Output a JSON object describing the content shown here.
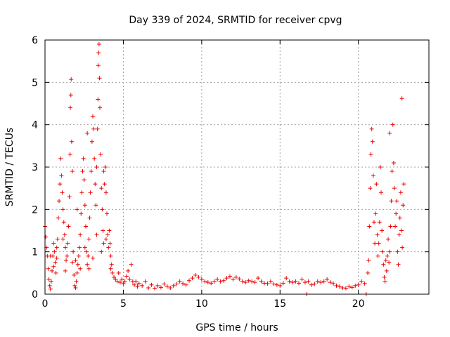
{
  "chart_data": {
    "type": "scatter",
    "title": "Day 339 of 2024, SRMTID for receiver cpvg",
    "xlabel": "GPS time / hours",
    "ylabel": "SRMTID / TECUs",
    "xlim": [
      0,
      24.5
    ],
    "ylim": [
      0,
      6
    ],
    "xticks": [
      0,
      5,
      10,
      15,
      20
    ],
    "yticks": [
      0,
      1,
      2,
      3,
      4,
      5,
      6
    ],
    "xtick_labels": [
      "0",
      "5",
      "10",
      "15",
      "20"
    ],
    "ytick_labels": [
      "0",
      "1",
      "2",
      "3",
      "4",
      "5",
      "6"
    ],
    "grid": true,
    "marker": "+",
    "series": [
      {
        "name": "SRMTID",
        "color": "#ee0000",
        "points": [
          [
            0.0,
            1.6
          ],
          [
            0.05,
            1.35
          ],
          [
            0.1,
            1.1
          ],
          [
            0.15,
            0.9
          ],
          [
            0.2,
            0.6
          ],
          [
            0.25,
            0.35
          ],
          [
            0.3,
            0.2
          ],
          [
            0.35,
            0.12
          ],
          [
            0.4,
            0.3
          ],
          [
            0.45,
            0.55
          ],
          [
            0.5,
            0.9
          ],
          [
            0.55,
            1.2
          ],
          [
            0.6,
            1.0
          ],
          [
            0.65,
            0.75
          ],
          [
            0.7,
            0.5
          ],
          [
            0.75,
            0.85
          ],
          [
            0.8,
            1.3
          ],
          [
            0.85,
            1.8
          ],
          [
            0.9,
            2.2
          ],
          [
            0.95,
            2.6
          ],
          [
            1.0,
            3.2
          ],
          [
            1.05,
            2.8
          ],
          [
            1.1,
            2.4
          ],
          [
            1.15,
            2.0
          ],
          [
            1.2,
            1.7
          ],
          [
            1.25,
            1.4
          ],
          [
            1.3,
            1.1
          ],
          [
            1.35,
            0.8
          ],
          [
            1.4,
            0.9
          ],
          [
            1.45,
            1.2
          ],
          [
            1.5,
            1.6
          ],
          [
            1.55,
            2.3
          ],
          [
            1.6,
            3.3
          ],
          [
            1.62,
            4.4
          ],
          [
            1.65,
            4.7
          ],
          [
            1.67,
            5.07
          ],
          [
            1.7,
            3.6
          ],
          [
            1.75,
            2.9
          ],
          [
            1.8,
            1.0
          ],
          [
            1.85,
            0.45
          ],
          [
            1.9,
            0.2
          ],
          [
            1.95,
            0.15
          ],
          [
            2.0,
            0.3
          ],
          [
            2.05,
            0.5
          ],
          [
            2.1,
            0.7
          ],
          [
            2.15,
            0.9
          ],
          [
            2.2,
            1.1
          ],
          [
            2.25,
            1.4
          ],
          [
            2.3,
            1.9
          ],
          [
            2.35,
            2.4
          ],
          [
            2.4,
            2.9
          ],
          [
            2.45,
            3.2
          ],
          [
            2.5,
            2.7
          ],
          [
            2.55,
            2.1
          ],
          [
            2.6,
            1.6
          ],
          [
            2.65,
            1.0
          ],
          [
            2.7,
            0.7
          ],
          [
            2.75,
            0.9
          ],
          [
            2.8,
            1.3
          ],
          [
            2.85,
            1.8
          ],
          [
            2.9,
            2.4
          ],
          [
            2.95,
            2.9
          ],
          [
            3.0,
            3.6
          ],
          [
            3.05,
            4.2
          ],
          [
            3.1,
            3.9
          ],
          [
            3.15,
            3.2
          ],
          [
            3.2,
            2.6
          ],
          [
            3.25,
            2.1
          ],
          [
            3.3,
            3.0
          ],
          [
            3.35,
            3.9
          ],
          [
            3.38,
            4.6
          ],
          [
            3.4,
            5.4
          ],
          [
            3.42,
            5.7
          ],
          [
            3.45,
            5.9
          ],
          [
            3.48,
            5.1
          ],
          [
            3.5,
            4.4
          ],
          [
            3.55,
            3.3
          ],
          [
            3.6,
            2.5
          ],
          [
            3.65,
            2.0
          ],
          [
            3.7,
            1.5
          ],
          [
            3.75,
            1.2
          ],
          [
            3.8,
            2.6
          ],
          [
            3.85,
            3.0
          ],
          [
            3.9,
            2.4
          ],
          [
            3.95,
            1.9
          ],
          [
            4.0,
            1.4
          ],
          [
            4.05,
            1.1
          ],
          [
            4.1,
            1.5
          ],
          [
            4.15,
            1.2
          ],
          [
            4.2,
            0.9
          ],
          [
            4.25,
            0.7
          ],
          [
            4.3,
            0.5
          ],
          [
            4.4,
            0.4
          ],
          [
            4.5,
            0.35
          ],
          [
            4.6,
            0.3
          ],
          [
            4.7,
            0.5
          ],
          [
            4.8,
            0.28
          ],
          [
            4.9,
            0.35
          ],
          [
            5.0,
            0.25
          ],
          [
            5.1,
            0.3
          ],
          [
            5.2,
            0.42
          ],
          [
            5.3,
            0.55
          ],
          [
            5.4,
            0.35
          ],
          [
            5.5,
            0.7
          ],
          [
            5.6,
            0.3
          ],
          [
            5.7,
            0.22
          ],
          [
            5.8,
            0.3
          ],
          [
            5.9,
            0.18
          ],
          [
            6.0,
            0.25
          ],
          [
            6.2,
            0.2
          ],
          [
            6.4,
            0.3
          ],
          [
            6.6,
            0.15
          ],
          [
            6.8,
            0.22
          ],
          [
            7.0,
            0.14
          ],
          [
            7.2,
            0.2
          ],
          [
            7.4,
            0.16
          ],
          [
            7.6,
            0.24
          ],
          [
            7.8,
            0.18
          ],
          [
            8.0,
            0.15
          ],
          [
            8.2,
            0.2
          ],
          [
            8.4,
            0.24
          ],
          [
            8.6,
            0.3
          ],
          [
            8.8,
            0.25
          ],
          [
            9.0,
            0.22
          ],
          [
            9.2,
            0.32
          ],
          [
            9.4,
            0.38
          ],
          [
            9.6,
            0.45
          ],
          [
            9.8,
            0.4
          ],
          [
            10.0,
            0.35
          ],
          [
            10.2,
            0.3
          ],
          [
            10.4,
            0.28
          ],
          [
            10.6,
            0.26
          ],
          [
            10.8,
            0.3
          ],
          [
            11.0,
            0.35
          ],
          [
            11.2,
            0.3
          ],
          [
            11.4,
            0.32
          ],
          [
            11.6,
            0.38
          ],
          [
            11.8,
            0.42
          ],
          [
            12.0,
            0.35
          ],
          [
            12.2,
            0.4
          ],
          [
            12.4,
            0.36
          ],
          [
            12.6,
            0.3
          ],
          [
            12.8,
            0.28
          ],
          [
            13.0,
            0.32
          ],
          [
            13.2,
            0.3
          ],
          [
            13.4,
            0.28
          ],
          [
            13.6,
            0.38
          ],
          [
            13.8,
            0.3
          ],
          [
            14.0,
            0.26
          ],
          [
            14.2,
            0.25
          ],
          [
            14.4,
            0.3
          ],
          [
            14.6,
            0.24
          ],
          [
            14.8,
            0.22
          ],
          [
            15.0,
            0.2
          ],
          [
            15.2,
            0.26
          ],
          [
            15.4,
            0.38
          ],
          [
            15.6,
            0.3
          ],
          [
            15.8,
            0.28
          ],
          [
            16.0,
            0.3
          ],
          [
            16.2,
            0.26
          ],
          [
            16.4,
            0.35
          ],
          [
            16.6,
            0.28
          ],
          [
            16.7,
            0.0
          ],
          [
            16.8,
            0.3
          ],
          [
            17.0,
            0.22
          ],
          [
            17.2,
            0.24
          ],
          [
            17.4,
            0.3
          ],
          [
            17.6,
            0.28
          ],
          [
            17.8,
            0.3
          ],
          [
            18.0,
            0.35
          ],
          [
            18.2,
            0.28
          ],
          [
            18.4,
            0.25
          ],
          [
            18.6,
            0.2
          ],
          [
            18.8,
            0.18
          ],
          [
            19.0,
            0.15
          ],
          [
            19.2,
            0.14
          ],
          [
            19.4,
            0.18
          ],
          [
            19.6,
            0.16
          ],
          [
            19.8,
            0.2
          ],
          [
            20.0,
            0.22
          ],
          [
            20.2,
            0.3
          ],
          [
            20.4,
            0.25
          ],
          [
            20.5,
            0.0
          ],
          [
            20.6,
            0.5
          ],
          [
            20.65,
            0.8
          ],
          [
            20.7,
            1.6
          ],
          [
            20.75,
            2.5
          ],
          [
            20.8,
            3.3
          ],
          [
            20.85,
            3.9
          ],
          [
            20.9,
            3.6
          ],
          [
            20.95,
            2.8
          ],
          [
            21.0,
            1.7
          ],
          [
            21.05,
            1.2
          ],
          [
            21.1,
            1.9
          ],
          [
            21.15,
            2.6
          ],
          [
            21.2,
            1.4
          ],
          [
            21.25,
            0.9
          ],
          [
            21.3,
            1.2
          ],
          [
            21.35,
            1.7
          ],
          [
            21.4,
            3.0
          ],
          [
            21.45,
            2.4
          ],
          [
            21.5,
            1.5
          ],
          [
            21.55,
            1.0
          ],
          [
            21.6,
            0.7
          ],
          [
            21.65,
            0.4
          ],
          [
            21.7,
            0.3
          ],
          [
            21.75,
            0.8
          ],
          [
            21.8,
            0.55
          ],
          [
            21.85,
            0.9
          ],
          [
            21.9,
            1.3
          ],
          [
            21.95,
            0.75
          ],
          [
            22.0,
            1.0
          ],
          [
            22.05,
            1.6
          ],
          [
            22.1,
            2.2
          ],
          [
            22.15,
            2.9
          ],
          [
            22.2,
            4.0
          ],
          [
            22.25,
            3.1
          ],
          [
            22.3,
            2.5
          ],
          [
            22.35,
            1.6
          ],
          [
            22.4,
            1.9
          ],
          [
            22.45,
            2.2
          ],
          [
            22.5,
            1.0
          ],
          [
            22.55,
            0.7
          ],
          [
            22.6,
            1.4
          ],
          [
            22.65,
            1.8
          ],
          [
            22.7,
            2.4
          ],
          [
            22.75,
            1.5
          ],
          [
            22.8,
            1.1
          ],
          [
            22.85,
            2.1
          ],
          [
            22.9,
            2.6
          ],
          [
            22.78,
            4.62
          ],
          [
            22.0,
            3.8
          ],
          [
            0.35,
            0.9
          ],
          [
            0.55,
            0.65
          ],
          [
            1.15,
            1.3
          ],
          [
            1.95,
            0.8
          ],
          [
            2.25,
            0.6
          ],
          [
            2.55,
            1.1
          ],
          [
            2.8,
            0.6
          ],
          [
            3.05,
            0.85
          ],
          [
            3.3,
            1.4
          ],
          [
            3.6,
            1.0
          ],
          [
            3.9,
            1.3
          ],
          [
            4.2,
            0.6
          ],
          [
            0.75,
            1.1
          ],
          [
            1.3,
            0.55
          ],
          [
            1.75,
            0.75
          ],
          [
            2.05,
            2.0
          ],
          [
            2.7,
            3.8
          ],
          [
            3.75,
            2.9
          ]
        ]
      }
    ]
  }
}
